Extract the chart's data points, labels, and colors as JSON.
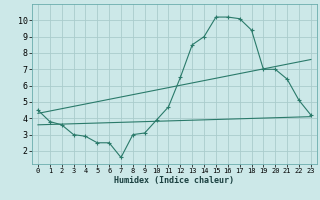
{
  "title": "",
  "xlabel": "Humidex (Indice chaleur)",
  "ylabel": "",
  "bg_color": "#cce8e8",
  "grid_color": "#aacccc",
  "line_color": "#2a7a6a",
  "xlim": [
    -0.5,
    23.5
  ],
  "ylim": [
    1.2,
    11.0
  ],
  "xticks": [
    0,
    1,
    2,
    3,
    4,
    5,
    6,
    7,
    8,
    9,
    10,
    11,
    12,
    13,
    14,
    15,
    16,
    17,
    18,
    19,
    20,
    21,
    22,
    23
  ],
  "yticks": [
    2,
    3,
    4,
    5,
    6,
    7,
    8,
    9,
    10
  ],
  "line1_x": [
    0,
    1,
    2,
    3,
    4,
    5,
    6,
    7,
    8,
    9,
    10,
    11,
    12,
    13,
    14,
    15,
    16,
    17,
    18,
    19,
    20,
    21,
    22,
    23
  ],
  "line1_y": [
    4.5,
    3.8,
    3.6,
    3.0,
    2.9,
    2.5,
    2.5,
    1.6,
    3.0,
    3.1,
    3.9,
    4.7,
    6.5,
    8.5,
    9.0,
    10.2,
    10.2,
    10.1,
    9.4,
    7.0,
    7.0,
    6.4,
    5.1,
    4.2
  ],
  "line2_x": [
    0,
    23
  ],
  "line2_y": [
    4.3,
    7.6
  ],
  "line3_x": [
    0,
    23
  ],
  "line3_y": [
    3.6,
    4.1
  ]
}
